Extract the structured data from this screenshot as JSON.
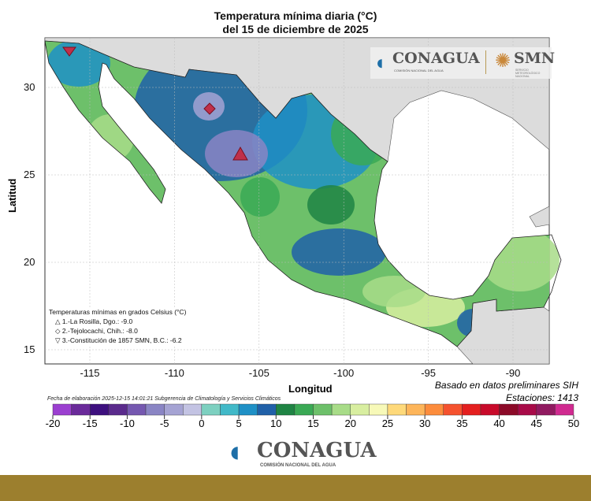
{
  "title": {
    "line1": "Temperatura mínima diaria (°C)",
    "line2": "del 15 de diciembre de 2025"
  },
  "axes": {
    "xlabel": "Longitud",
    "ylabel": "Latitud",
    "xticks": [
      "-115",
      "-110",
      "-105",
      "-100",
      "-95",
      "-90"
    ],
    "yticks": [
      "30",
      "25",
      "20",
      "15"
    ]
  },
  "legend": {
    "heading": "Temperaturas mínimas en grados Celsius (°C)",
    "items": [
      {
        "symbol": "triangle-up",
        "text": "1.-La Rosilla, Dgo.: -9.0"
      },
      {
        "symbol": "diamond",
        "text": "2.-Tejolocachi, Chih.: -8.0"
      },
      {
        "symbol": "triangle-down",
        "text": "3.-Constitución de 1857 SMN, B.C.: -6.2"
      }
    ]
  },
  "notes": {
    "fecha": "Fecha de elaboración 2025-12-15 14:01:21 Subgerencia de Climatología y Servicios Climáticos",
    "basado": "Basado en datos preliminares SIH",
    "estaciones": "Estaciones:  1413"
  },
  "colorbar": {
    "min": -20,
    "max": 50,
    "step": 2.5,
    "labels": [
      "-20",
      "-15",
      "-10",
      "-5",
      "0",
      "5",
      "10",
      "15",
      "20",
      "25",
      "30",
      "35",
      "40",
      "45",
      "50"
    ],
    "colors": [
      "#9b3fd0",
      "#6a2a9a",
      "#3d0f7e",
      "#5a2a8c",
      "#7558b0",
      "#8a85c4",
      "#a5a3d3",
      "#c3c3e3",
      "#7dd0c0",
      "#41b9c8",
      "#1e90c6",
      "#2060a8",
      "#1f8444",
      "#3aa955",
      "#6dc06a",
      "#a8dc88",
      "#d8eea0",
      "#f7f9b8",
      "#fed97a",
      "#fdb55a",
      "#fc8c3c",
      "#f5522e",
      "#e41f1f",
      "#c80a2a",
      "#8c0a28",
      "#a80a48",
      "#901a60",
      "#d02a90"
    ]
  },
  "logos": {
    "conagua": "CONAGUA",
    "conagua_sub": "COMISIÓN NACIONAL DEL AGUA",
    "smn": "SMN",
    "smn_sub": "SERVICIO METEOROLÓGICO NACIONAL"
  },
  "colors": {
    "land_other": "#dcdcdc",
    "footer": "#9c7f2e",
    "station_marker": "#c0304a"
  }
}
